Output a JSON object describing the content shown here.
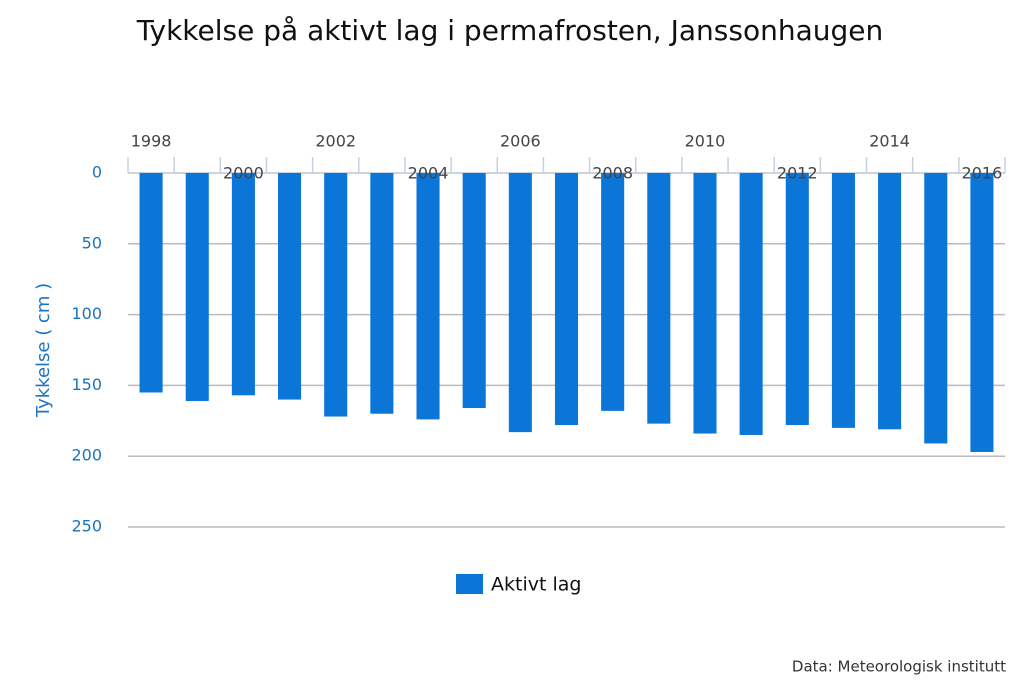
{
  "chart_data": {
    "type": "bar",
    "title": "Tykkelse på aktivt lag i permafrosten, Janssonhaugen",
    "y_label": "Tykkelse ( cm )",
    "categories": [
      "1998",
      null,
      "2000",
      null,
      "2002",
      null,
      "2004",
      null,
      "2006",
      null,
      "2008",
      null,
      "2010",
      null,
      "2012",
      null,
      "2014",
      null,
      "2016"
    ],
    "series": [
      {
        "name": "Aktivt lag",
        "color": "#0b76d8",
        "values": [
          155,
          161,
          157,
          160,
          172,
          170,
          174,
          166,
          183,
          178,
          168,
          177,
          184,
          185,
          178,
          180,
          181,
          191,
          197
        ]
      }
    ],
    "ylim": [
      0,
      250
    ],
    "yticks": [
      0,
      50,
      100,
      150,
      200,
      250
    ],
    "y_inverted": true,
    "grid": true,
    "source": "Data: Meteorologisk institutt"
  }
}
